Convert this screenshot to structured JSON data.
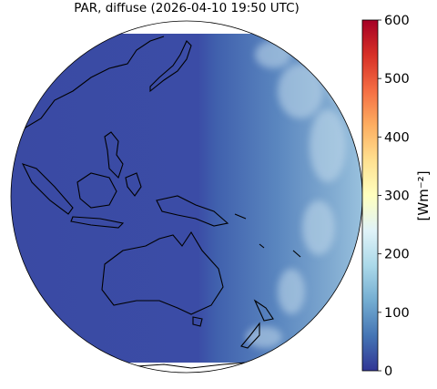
{
  "chart_data": {
    "type": "map",
    "title": "PAR, diffuse (2026-04-10 19:50 UTC)",
    "colorbar": {
      "label": "[Wm⁻²]",
      "lim": [
        0,
        600
      ],
      "ticks": [
        0,
        100,
        200,
        300,
        400,
        500,
        600
      ],
      "colors": [
        "#313695",
        "#4575b4",
        "#74add1",
        "#abd9e9",
        "#e0f3f8",
        "#ffffbf",
        "#fee090",
        "#fdae61",
        "#f46d43",
        "#d73027",
        "#a50026"
      ]
    }
  }
}
